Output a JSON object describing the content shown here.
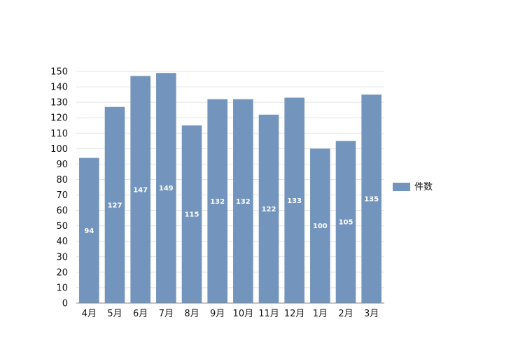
{
  "chart_data": {
    "type": "bar",
    "categories": [
      "4月",
      "5月",
      "6月",
      "7月",
      "8月",
      "9月",
      "10月",
      "11月",
      "12月",
      "1月",
      "2月",
      "3月"
    ],
    "series": [
      {
        "name": "件数",
        "values": [
          94,
          127,
          147,
          149,
          115,
          132,
          132,
          122,
          133,
          100,
          105,
          135
        ]
      }
    ],
    "title": "",
    "xlabel": "",
    "ylabel": "",
    "ylim": [
      0,
      150
    ],
    "yticks": [
      0,
      10,
      20,
      30,
      40,
      50,
      60,
      70,
      80,
      90,
      100,
      110,
      120,
      130,
      140,
      150
    ],
    "grid": true,
    "legend_position": "right",
    "data_labels": true,
    "colors": {
      "bar": "#7395bd",
      "grid": "#e3e3e3",
      "axis": "#888888"
    }
  }
}
